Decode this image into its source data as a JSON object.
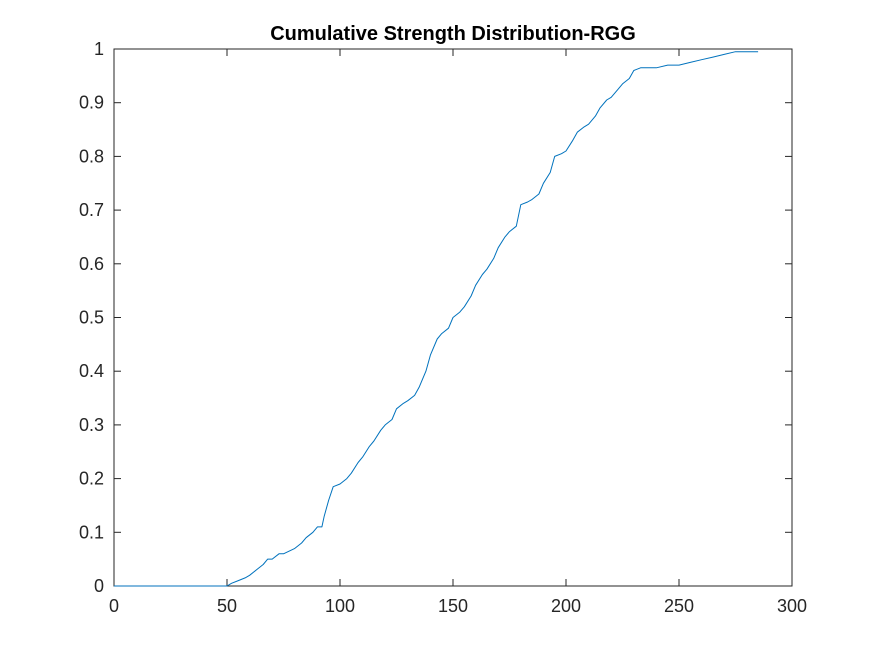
{
  "chart_data": {
    "type": "line",
    "title": "Cumulative Strength Distribution-RGG",
    "xlabel": "",
    "ylabel": "",
    "xlim": [
      0,
      300
    ],
    "ylim": [
      0,
      1
    ],
    "xticks": [
      0,
      50,
      100,
      150,
      200,
      250,
      300
    ],
    "yticks": [
      0,
      0.1,
      0.2,
      0.3,
      0.4,
      0.5,
      0.6,
      0.7,
      0.8,
      0.9,
      1
    ],
    "xtick_labels": [
      "0",
      "50",
      "100",
      "150",
      "200",
      "250",
      "300"
    ],
    "ytick_labels": [
      "0",
      "0.1",
      "0.2",
      "0.3",
      "0.4",
      "0.5",
      "0.6",
      "0.7",
      "0.8",
      "0.9",
      "1"
    ],
    "grid": false,
    "legend": "none",
    "line_color": "#0072BD",
    "series": [
      {
        "x": [
          0,
          50,
          52,
          55,
          58,
          60,
          63,
          66,
          68,
          70,
          73,
          75,
          80,
          83,
          85,
          88,
          90,
          92,
          93,
          95,
          97,
          100,
          103,
          105,
          108,
          110,
          113,
          115,
          118,
          120,
          123,
          125,
          128,
          130,
          133,
          135,
          138,
          140,
          143,
          145,
          148,
          150,
          153,
          155,
          158,
          160,
          163,
          165,
          168,
          170,
          173,
          175,
          178,
          180,
          183,
          185,
          188,
          190,
          193,
          195,
          198,
          200,
          203,
          205,
          208,
          210,
          213,
          215,
          218,
          220,
          223,
          225,
          228,
          230,
          233,
          235,
          238,
          240,
          245,
          250,
          255,
          260,
          265,
          270,
          275,
          280,
          285
        ],
        "y": [
          0,
          0,
          0.005,
          0.01,
          0.015,
          0.02,
          0.03,
          0.04,
          0.05,
          0.05,
          0.06,
          0.06,
          0.07,
          0.08,
          0.09,
          0.1,
          0.11,
          0.11,
          0.13,
          0.16,
          0.185,
          0.19,
          0.2,
          0.21,
          0.23,
          0.24,
          0.26,
          0.27,
          0.29,
          0.3,
          0.31,
          0.33,
          0.34,
          0.345,
          0.355,
          0.37,
          0.4,
          0.43,
          0.46,
          0.47,
          0.48,
          0.5,
          0.51,
          0.52,
          0.54,
          0.56,
          0.58,
          0.59,
          0.61,
          0.63,
          0.65,
          0.66,
          0.67,
          0.71,
          0.715,
          0.72,
          0.73,
          0.75,
          0.77,
          0.8,
          0.805,
          0.81,
          0.83,
          0.845,
          0.855,
          0.86,
          0.875,
          0.89,
          0.905,
          0.91,
          0.925,
          0.935,
          0.945,
          0.96,
          0.965,
          0.965,
          0.965,
          0.965,
          0.97,
          0.97,
          0.975,
          0.98,
          0.985,
          0.99,
          0.995,
          0.995,
          0.995
        ]
      }
    ]
  }
}
